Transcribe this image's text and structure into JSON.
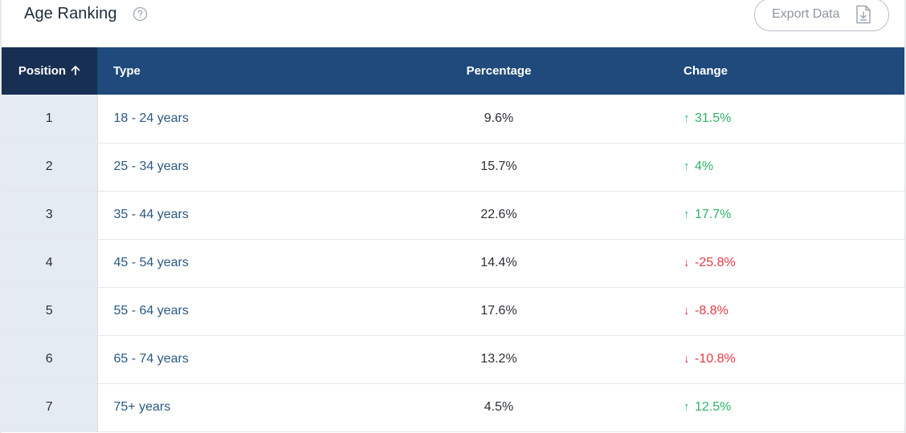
{
  "header": {
    "title": "Age Ranking",
    "help_icon": "help-circle-icon",
    "export_label": "Export Data",
    "export_icon": "file-download-icon"
  },
  "table": {
    "columns": {
      "position": "Position",
      "type": "Type",
      "percentage": "Percentage",
      "change": "Change"
    },
    "sort": {
      "column": "position",
      "direction": "ascending",
      "icon": "arrow-up-icon"
    },
    "rows": [
      {
        "position": "1",
        "type": "18 - 24 years",
        "percentage": "9.6%",
        "change": "31.5%",
        "direction": "up"
      },
      {
        "position": "2",
        "type": "25 - 34 years",
        "percentage": "15.7%",
        "change": "4%",
        "direction": "up"
      },
      {
        "position": "3",
        "type": "35 - 44 years",
        "percentage": "22.6%",
        "change": "17.7%",
        "direction": "up"
      },
      {
        "position": "4",
        "type": "45 - 54 years",
        "percentage": "14.4%",
        "change": "-25.8%",
        "direction": "down"
      },
      {
        "position": "5",
        "type": "55 - 64 years",
        "percentage": "17.6%",
        "change": "-8.8%",
        "direction": "down"
      },
      {
        "position": "6",
        "type": "65 - 74 years",
        "percentage": "13.2%",
        "change": "-10.8%",
        "direction": "down"
      },
      {
        "position": "7",
        "type": "75+ years",
        "percentage": "4.5%",
        "change": "12.5%",
        "direction": "up"
      }
    ]
  },
  "colors": {
    "header_bg": "#1f4a7b",
    "header_sorted_bg": "#162f52",
    "position_cell_bg": "#e5ebf2",
    "type_link": "#2a5885",
    "change_up": "#2db463",
    "change_down": "#e53946"
  }
}
